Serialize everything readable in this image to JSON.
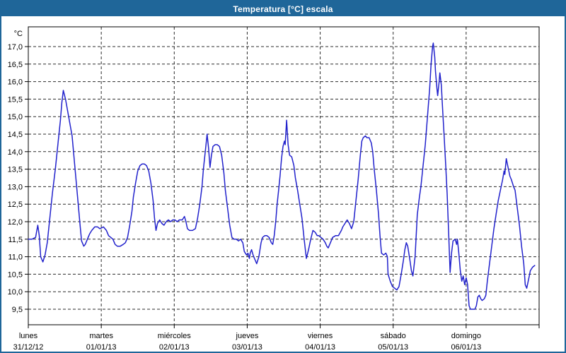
{
  "title": "Temperatura [°C] escala",
  "colors": {
    "titlebar_bg": "#1f6699",
    "frame": "#1f6699",
    "title_text": "#ffffff",
    "line": "#2222cc",
    "grid": "#2b2b2b",
    "plot_border": "#000000",
    "label_text": "#000000",
    "background": "#ffffff"
  },
  "y_axis": {
    "unit_label": "°C",
    "min": 9.5,
    "max": 17.0,
    "step": 0.5,
    "tick_labels": [
      "17,0",
      "16,5",
      "16,0",
      "15,5",
      "15,0",
      "14,5",
      "14,0",
      "13,5",
      "13,0",
      "12,5",
      "12,0",
      "11,5",
      "11,0",
      "10,5",
      "10,0",
      "9,5"
    ]
  },
  "x_axis": {
    "days": [
      {
        "name": "lunes",
        "date": "31/12/12"
      },
      {
        "name": "martes",
        "date": "01/01/13"
      },
      {
        "name": "miércoles",
        "date": "02/01/13"
      },
      {
        "name": "jueves",
        "date": "03/01/13"
      },
      {
        "name": "viernes",
        "date": "04/01/13"
      },
      {
        "name": "sábado",
        "date": "05/01/13"
      },
      {
        "name": "domingo",
        "date": "06/01/13"
      }
    ]
  },
  "chart_data": {
    "type": "line",
    "title": "Temperatura [°C] escala",
    "ylabel": "°C",
    "ylim": [
      9.5,
      17.0
    ],
    "x_unit": "days (0 = lunes 31/12/12 00:00, 7 = end of domingo 06/01/13)",
    "grid": true,
    "legend": false,
    "series": [
      {
        "name": "Temperatura",
        "points": [
          [
            0.0,
            11.5
          ],
          [
            0.05,
            11.5
          ],
          [
            0.1,
            11.55
          ],
          [
            0.13,
            11.9
          ],
          [
            0.15,
            11.6
          ],
          [
            0.17,
            11.0
          ],
          [
            0.2,
            10.85
          ],
          [
            0.23,
            11.05
          ],
          [
            0.26,
            11.4
          ],
          [
            0.29,
            12.0
          ],
          [
            0.33,
            12.8
          ],
          [
            0.37,
            13.5
          ],
          [
            0.41,
            14.3
          ],
          [
            0.44,
            14.9
          ],
          [
            0.46,
            15.4
          ],
          [
            0.48,
            15.75
          ],
          [
            0.51,
            15.5
          ],
          [
            0.54,
            15.15
          ],
          [
            0.57,
            14.8
          ],
          [
            0.6,
            14.45
          ],
          [
            0.62,
            14.0
          ],
          [
            0.65,
            13.3
          ],
          [
            0.68,
            12.6
          ],
          [
            0.71,
            11.9
          ],
          [
            0.73,
            11.45
          ],
          [
            0.76,
            11.3
          ],
          [
            0.78,
            11.35
          ],
          [
            0.81,
            11.5
          ],
          [
            0.84,
            11.65
          ],
          [
            0.87,
            11.75
          ],
          [
            0.91,
            11.85
          ],
          [
            0.95,
            11.85
          ],
          [
            0.98,
            11.8
          ],
          [
            1.03,
            11.85
          ],
          [
            1.07,
            11.75
          ],
          [
            1.1,
            11.6
          ],
          [
            1.13,
            11.55
          ],
          [
            1.16,
            11.5
          ],
          [
            1.19,
            11.35
          ],
          [
            1.22,
            11.3
          ],
          [
            1.26,
            11.3
          ],
          [
            1.3,
            11.35
          ],
          [
            1.33,
            11.4
          ],
          [
            1.36,
            11.55
          ],
          [
            1.39,
            11.9
          ],
          [
            1.42,
            12.3
          ],
          [
            1.44,
            12.7
          ],
          [
            1.47,
            13.1
          ],
          [
            1.5,
            13.45
          ],
          [
            1.53,
            13.6
          ],
          [
            1.56,
            13.65
          ],
          [
            1.59,
            13.65
          ],
          [
            1.62,
            13.6
          ],
          [
            1.65,
            13.45
          ],
          [
            1.68,
            13.1
          ],
          [
            1.71,
            12.6
          ],
          [
            1.73,
            12.1
          ],
          [
            1.75,
            11.75
          ],
          [
            1.77,
            11.95
          ],
          [
            1.8,
            12.05
          ],
          [
            1.83,
            11.95
          ],
          [
            1.86,
            11.9
          ],
          [
            1.89,
            12.0
          ],
          [
            1.92,
            12.05
          ],
          [
            1.95,
            12.0
          ],
          [
            1.98,
            12.05
          ],
          [
            2.01,
            12.05
          ],
          [
            2.04,
            12.0
          ],
          [
            2.07,
            12.05
          ],
          [
            2.11,
            12.05
          ],
          [
            2.14,
            12.15
          ],
          [
            2.16,
            12.0
          ],
          [
            2.18,
            11.8
          ],
          [
            2.21,
            11.75
          ],
          [
            2.25,
            11.75
          ],
          [
            2.29,
            11.8
          ],
          [
            2.32,
            12.1
          ],
          [
            2.35,
            12.5
          ],
          [
            2.38,
            13.0
          ],
          [
            2.4,
            13.5
          ],
          [
            2.42,
            13.9
          ],
          [
            2.44,
            14.3
          ],
          [
            2.45,
            14.5
          ],
          [
            2.47,
            14.1
          ],
          [
            2.49,
            13.55
          ],
          [
            2.51,
            13.9
          ],
          [
            2.53,
            14.15
          ],
          [
            2.56,
            14.2
          ],
          [
            2.59,
            14.2
          ],
          [
            2.62,
            14.15
          ],
          [
            2.65,
            13.9
          ],
          [
            2.68,
            13.4
          ],
          [
            2.7,
            12.9
          ],
          [
            2.73,
            12.4
          ],
          [
            2.76,
            11.9
          ],
          [
            2.79,
            11.55
          ],
          [
            2.82,
            11.5
          ],
          [
            2.85,
            11.5
          ],
          [
            2.88,
            11.45
          ],
          [
            2.91,
            11.5
          ],
          [
            2.94,
            11.4
          ],
          [
            2.96,
            11.15
          ],
          [
            2.99,
            11.05
          ],
          [
            3.01,
            11.1
          ],
          [
            3.03,
            10.95
          ],
          [
            3.04,
            11.1
          ],
          [
            3.06,
            11.2
          ],
          [
            3.08,
            11.05
          ],
          [
            3.1,
            10.95
          ],
          [
            3.13,
            10.8
          ],
          [
            3.16,
            11.0
          ],
          [
            3.19,
            11.4
          ],
          [
            3.21,
            11.55
          ],
          [
            3.24,
            11.6
          ],
          [
            3.27,
            11.6
          ],
          [
            3.3,
            11.55
          ],
          [
            3.33,
            11.4
          ],
          [
            3.35,
            11.35
          ],
          [
            3.37,
            11.6
          ],
          [
            3.39,
            12.0
          ],
          [
            3.41,
            12.5
          ],
          [
            3.43,
            12.9
          ],
          [
            3.45,
            13.3
          ],
          [
            3.47,
            13.8
          ],
          [
            3.49,
            14.15
          ],
          [
            3.51,
            14.3
          ],
          [
            3.52,
            14.2
          ],
          [
            3.54,
            14.9
          ],
          [
            3.56,
            14.2
          ],
          [
            3.58,
            13.9
          ],
          [
            3.61,
            13.85
          ],
          [
            3.64,
            13.6
          ],
          [
            3.66,
            13.25
          ],
          [
            3.69,
            12.9
          ],
          [
            3.72,
            12.5
          ],
          [
            3.75,
            12.1
          ],
          [
            3.78,
            11.5
          ],
          [
            3.81,
            10.95
          ],
          [
            3.84,
            11.2
          ],
          [
            3.87,
            11.5
          ],
          [
            3.9,
            11.75
          ],
          [
            3.93,
            11.7
          ],
          [
            3.96,
            11.6
          ],
          [
            3.98,
            11.6
          ],
          [
            4.01,
            11.55
          ],
          [
            4.04,
            11.5
          ],
          [
            4.07,
            11.4
          ],
          [
            4.09,
            11.3
          ],
          [
            4.11,
            11.25
          ],
          [
            4.14,
            11.4
          ],
          [
            4.17,
            11.55
          ],
          [
            4.21,
            11.6
          ],
          [
            4.25,
            11.6
          ],
          [
            4.29,
            11.75
          ],
          [
            4.31,
            11.85
          ],
          [
            4.34,
            11.95
          ],
          [
            4.37,
            12.05
          ],
          [
            4.4,
            11.95
          ],
          [
            4.43,
            11.8
          ],
          [
            4.46,
            12.0
          ],
          [
            4.49,
            12.6
          ],
          [
            4.52,
            13.2
          ],
          [
            4.55,
            13.9
          ],
          [
            4.57,
            14.3
          ],
          [
            4.59,
            14.4
          ],
          [
            4.62,
            14.45
          ],
          [
            4.64,
            14.4
          ],
          [
            4.67,
            14.4
          ],
          [
            4.7,
            14.25
          ],
          [
            4.72,
            14.0
          ],
          [
            4.74,
            13.5
          ],
          [
            4.77,
            12.9
          ],
          [
            4.8,
            12.2
          ],
          [
            4.82,
            11.6
          ],
          [
            4.84,
            11.1
          ],
          [
            4.87,
            11.05
          ],
          [
            4.9,
            11.1
          ],
          [
            4.92,
            11.0
          ],
          [
            4.93,
            10.5
          ],
          [
            4.96,
            10.3
          ],
          [
            4.99,
            10.15
          ],
          [
            5.02,
            10.1
          ],
          [
            5.05,
            10.05
          ],
          [
            5.08,
            10.15
          ],
          [
            5.11,
            10.5
          ],
          [
            5.14,
            10.9
          ],
          [
            5.16,
            11.2
          ],
          [
            5.18,
            11.4
          ],
          [
            5.2,
            11.3
          ],
          [
            5.23,
            10.9
          ],
          [
            5.25,
            10.6
          ],
          [
            5.27,
            10.45
          ],
          [
            5.3,
            11.0
          ],
          [
            5.33,
            12.2
          ],
          [
            5.36,
            12.7
          ],
          [
            5.38,
            13.0
          ],
          [
            5.41,
            13.6
          ],
          [
            5.44,
            14.2
          ],
          [
            5.47,
            15.0
          ],
          [
            5.5,
            15.8
          ],
          [
            5.52,
            16.5
          ],
          [
            5.54,
            17.0
          ],
          [
            5.55,
            17.1
          ],
          [
            5.57,
            16.7
          ],
          [
            5.58,
            16.3
          ],
          [
            5.6,
            15.8
          ],
          [
            5.61,
            15.6
          ],
          [
            5.63,
            16.0
          ],
          [
            5.64,
            16.25
          ],
          [
            5.66,
            15.9
          ],
          [
            5.68,
            15.1
          ],
          [
            5.7,
            14.4
          ],
          [
            5.72,
            13.6
          ],
          [
            5.74,
            12.8
          ],
          [
            5.76,
            11.7
          ],
          [
            5.78,
            10.55
          ],
          [
            5.8,
            11.1
          ],
          [
            5.82,
            11.45
          ],
          [
            5.85,
            11.5
          ],
          [
            5.87,
            11.35
          ],
          [
            5.88,
            11.5
          ],
          [
            5.9,
            11.1
          ],
          [
            5.92,
            10.6
          ],
          [
            5.94,
            10.3
          ],
          [
            5.96,
            10.45
          ],
          [
            5.98,
            10.2
          ],
          [
            6.0,
            10.4
          ],
          [
            6.02,
            10.2
          ],
          [
            6.04,
            9.6
          ],
          [
            6.06,
            9.5
          ],
          [
            6.09,
            9.5
          ],
          [
            6.12,
            9.5
          ],
          [
            6.14,
            9.6
          ],
          [
            6.16,
            9.85
          ],
          [
            6.18,
            9.9
          ],
          [
            6.2,
            9.8
          ],
          [
            6.22,
            9.75
          ],
          [
            6.25,
            9.8
          ],
          [
            6.27,
            9.9
          ],
          [
            6.29,
            10.3
          ],
          [
            6.32,
            10.8
          ],
          [
            6.35,
            11.3
          ],
          [
            6.38,
            11.8
          ],
          [
            6.41,
            12.2
          ],
          [
            6.44,
            12.6
          ],
          [
            6.47,
            12.9
          ],
          [
            6.5,
            13.2
          ],
          [
            6.52,
            13.45
          ],
          [
            6.53,
            13.35
          ],
          [
            6.55,
            13.8
          ],
          [
            6.57,
            13.6
          ],
          [
            6.6,
            13.3
          ],
          [
            6.62,
            13.2
          ],
          [
            6.65,
            13.0
          ],
          [
            6.67,
            12.9
          ],
          [
            6.7,
            12.4
          ],
          [
            6.73,
            11.9
          ],
          [
            6.76,
            11.3
          ],
          [
            6.79,
            10.8
          ],
          [
            6.81,
            10.2
          ],
          [
            6.83,
            10.1
          ],
          [
            6.86,
            10.4
          ],
          [
            6.88,
            10.6
          ],
          [
            6.91,
            10.7
          ],
          [
            6.94,
            10.75
          ]
        ]
      }
    ]
  }
}
